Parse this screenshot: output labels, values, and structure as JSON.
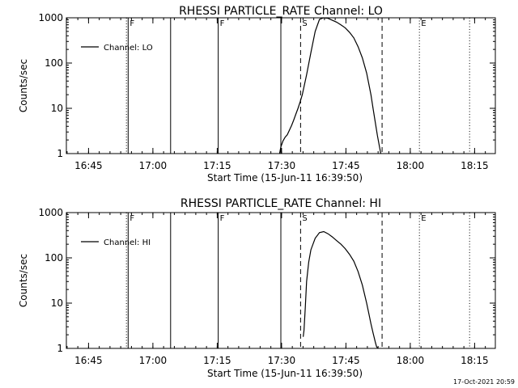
{
  "footer": {
    "timestamp": "17-Oct-2021 20:59"
  },
  "chart_data": [
    {
      "type": "line",
      "title": "RHESSI PARTICLE_RATE Channel: LO",
      "xlabel": "Start Time (15-Jun-11 16:39:50)",
      "ylabel": "Counts/sec",
      "y_scale": "log",
      "ylim": [
        1,
        1000
      ],
      "y_ticks": [
        "1",
        "10",
        "100",
        "1000"
      ],
      "xlim_minutes_after_1639": [
        0,
        100
      ],
      "x_ticks": [
        {
          "label": "16:45",
          "m": 5.17
        },
        {
          "label": "17:00",
          "m": 20.17
        },
        {
          "label": "17:15",
          "m": 35.17
        },
        {
          "label": "17:30",
          "m": 50.17
        },
        {
          "label": "17:45",
          "m": 65.17
        },
        {
          "label": "18:00",
          "m": 80.17
        },
        {
          "label": "18:15",
          "m": 95.17
        }
      ],
      "legend": {
        "position": "top-left",
        "label": "Channel: LO"
      },
      "grid": false,
      "markers": [
        {
          "m": 14.0,
          "style": "dotted",
          "label": ""
        },
        {
          "m": 14.4,
          "style": "solid",
          "label": "F"
        },
        {
          "m": 24.3,
          "style": "solid",
          "label": ""
        },
        {
          "m": 35.4,
          "style": "solid",
          "label": "F"
        },
        {
          "m": 50.0,
          "style": "solid",
          "label": ""
        },
        {
          "m": 54.6,
          "style": "dashed",
          "label": "S"
        },
        {
          "m": 73.6,
          "style": "dashed",
          "label": ""
        },
        {
          "m": 82.3,
          "style": "dotted",
          "label": "E"
        },
        {
          "m": 94.0,
          "style": "dotted",
          "label": ""
        }
      ],
      "series": [
        {
          "name": "Channel: LO",
          "x": [
            49.7,
            50.0,
            50.5,
            51.0,
            51.5,
            52.0,
            52.5,
            53.0,
            53.5,
            54.0,
            54.5,
            55.0,
            56.0,
            57.0,
            58.0,
            59.0,
            60.0,
            61.0,
            62.0,
            63.0,
            64.0,
            65.0,
            66.0,
            67.0,
            68.0,
            69.0,
            70.0,
            71.0,
            71.5,
            72.0,
            72.5,
            73.0,
            73.3
          ],
          "y": [
            1,
            1.4,
            1.9,
            2.3,
            2.6,
            3.3,
            4.2,
            5.5,
            7.5,
            10,
            14,
            20,
            55,
            170,
            500,
            920,
            1000,
            970,
            880,
            800,
            700,
            600,
            480,
            360,
            230,
            130,
            60,
            20,
            10,
            5,
            2.5,
            1.4,
            1
          ]
        }
      ]
    },
    {
      "type": "line",
      "title": "RHESSI PARTICLE_RATE Channel: HI",
      "xlabel": "Start Time (15-Jun-11 16:39:50)",
      "ylabel": "Counts/sec",
      "y_scale": "log",
      "ylim": [
        1,
        1000
      ],
      "y_ticks": [
        "1",
        "10",
        "100",
        "1000"
      ],
      "xlim_minutes_after_1639": [
        0,
        100
      ],
      "x_ticks": [
        {
          "label": "16:45",
          "m": 5.17
        },
        {
          "label": "17:00",
          "m": 20.17
        },
        {
          "label": "17:15",
          "m": 35.17
        },
        {
          "label": "17:30",
          "m": 50.17
        },
        {
          "label": "17:45",
          "m": 65.17
        },
        {
          "label": "18:00",
          "m": 80.17
        },
        {
          "label": "18:15",
          "m": 95.17
        }
      ],
      "legend": {
        "position": "top-left",
        "label": "Channel: HI"
      },
      "grid": false,
      "markers": [
        {
          "m": 14.0,
          "style": "dotted",
          "label": ""
        },
        {
          "m": 14.4,
          "style": "solid",
          "label": "F"
        },
        {
          "m": 24.3,
          "style": "solid",
          "label": ""
        },
        {
          "m": 35.4,
          "style": "solid",
          "label": "F"
        },
        {
          "m": 50.0,
          "style": "solid",
          "label": ""
        },
        {
          "m": 54.6,
          "style": "dashed",
          "label": "S"
        },
        {
          "m": 73.6,
          "style": "dashed",
          "label": ""
        },
        {
          "m": 82.3,
          "style": "dotted",
          "label": "E"
        },
        {
          "m": 94.0,
          "style": "dotted",
          "label": ""
        }
      ],
      "series": [
        {
          "name": "Channel: HI",
          "x": [
            55.2,
            55.4,
            55.7,
            56.0,
            56.5,
            57.0,
            58.0,
            59.0,
            60.0,
            61.0,
            62.0,
            63.0,
            64.0,
            65.0,
            66.0,
            67.0,
            68.0,
            69.0,
            70.0,
            70.5,
            71.0,
            71.5,
            72.0,
            72.3,
            72.6
          ],
          "y": [
            1.8,
            2.5,
            8,
            30,
            80,
            150,
            270,
            360,
            380,
            340,
            290,
            240,
            200,
            160,
            120,
            85,
            50,
            25,
            10,
            6,
            3.5,
            2.2,
            1.4,
            1.1,
            1
          ]
        }
      ]
    }
  ]
}
